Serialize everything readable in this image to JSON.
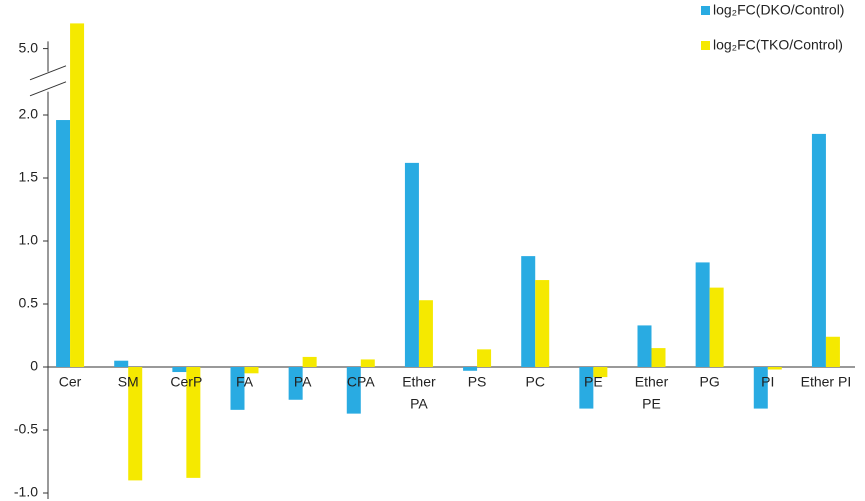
{
  "chart_data": {
    "type": "bar",
    "categories": [
      "Cer",
      "SM",
      "CerP",
      "FA",
      "PA",
      "CPA",
      [
        "Ether",
        "PA"
      ],
      "PS",
      "PC",
      "PE",
      [
        "Ether",
        "PE"
      ],
      "PG",
      "PI",
      "Ether PI"
    ],
    "series": [
      {
        "name": "log₂FC(DKO/Control)",
        "color": "#29abe2",
        "values": [
          1.96,
          0.05,
          -0.04,
          -0.34,
          -0.26,
          -0.37,
          1.62,
          -0.03,
          0.88,
          -0.33,
          0.33,
          0.83,
          -0.33,
          1.85
        ]
      },
      {
        "name": "log₂FC(TKO/Control)",
        "color": "#f5e900",
        "values": [
          5.2,
          -0.9,
          -0.88,
          -0.05,
          0.08,
          0.06,
          0.53,
          0.14,
          0.69,
          -0.08,
          0.15,
          0.63,
          -0.02,
          0.24
        ]
      }
    ],
    "ylim": [
      -1,
      5.2
    ],
    "ybreak": [
      2.2,
      4.8
    ],
    "yticks": [
      {
        "value": -1,
        "label": "-1.0"
      },
      -0.5,
      0,
      0.5,
      {
        "value": 1,
        "label": "1.0"
      },
      1.5,
      {
        "value": 2,
        "label": "2.0"
      },
      {
        "value": 5,
        "label": "5.0"
      }
    ],
    "legend": "upper right",
    "grid": false
  }
}
